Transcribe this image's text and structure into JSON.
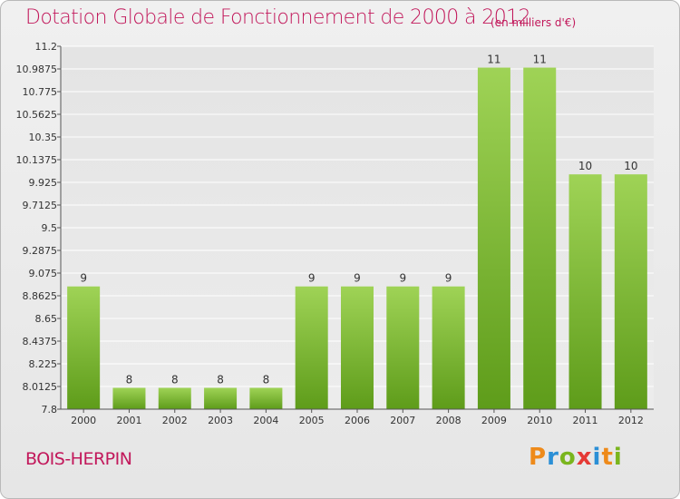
{
  "header": {
    "title": "Dotation Globale de Fonctionnement de 2000 à 2012",
    "unit": "(en milliers d'€)"
  },
  "footer": {
    "commune": "BOIS-HERPIN",
    "logo_text": "Proxiti"
  },
  "colors": {
    "title": "#c2185b",
    "bar_light": "#9fd356",
    "bar_dark": "#5e9c1a",
    "background": "#e8e8e8",
    "grid": "#ffffff"
  },
  "chart_data": {
    "type": "bar",
    "title": "Dotation Globale de Fonctionnement de 2000 à 2012",
    "subtitle": "(en milliers d'€)",
    "xlabel": "",
    "ylabel": "",
    "categories": [
      "2000",
      "2001",
      "2002",
      "2003",
      "2004",
      "2005",
      "2006",
      "2007",
      "2008",
      "2009",
      "2010",
      "2011",
      "2012"
    ],
    "values": [
      9,
      8,
      8,
      8,
      8,
      9,
      9,
      9,
      9,
      11,
      11,
      10,
      10
    ],
    "data_labels": [
      "9",
      "8",
      "8",
      "8",
      "8",
      "9",
      "9",
      "9",
      "9",
      "11",
      "11",
      "10",
      "10"
    ],
    "plotted_values": [
      8.95,
      8.0,
      8.0,
      8.0,
      8.0,
      8.95,
      8.95,
      8.95,
      8.95,
      11.0,
      11.0,
      10.0,
      10.0
    ],
    "ylim": [
      7.8,
      11.2
    ],
    "yticks": [
      "7.8",
      "8.0125",
      "8.225",
      "8.4375",
      "8.65",
      "8.8625",
      "9.075",
      "9.2875",
      "9.5",
      "9.7125",
      "9.925",
      "10.1375",
      "10.35",
      "10.5625",
      "10.775",
      "10.9875",
      "11.2"
    ],
    "grid": true,
    "legend": "none"
  }
}
